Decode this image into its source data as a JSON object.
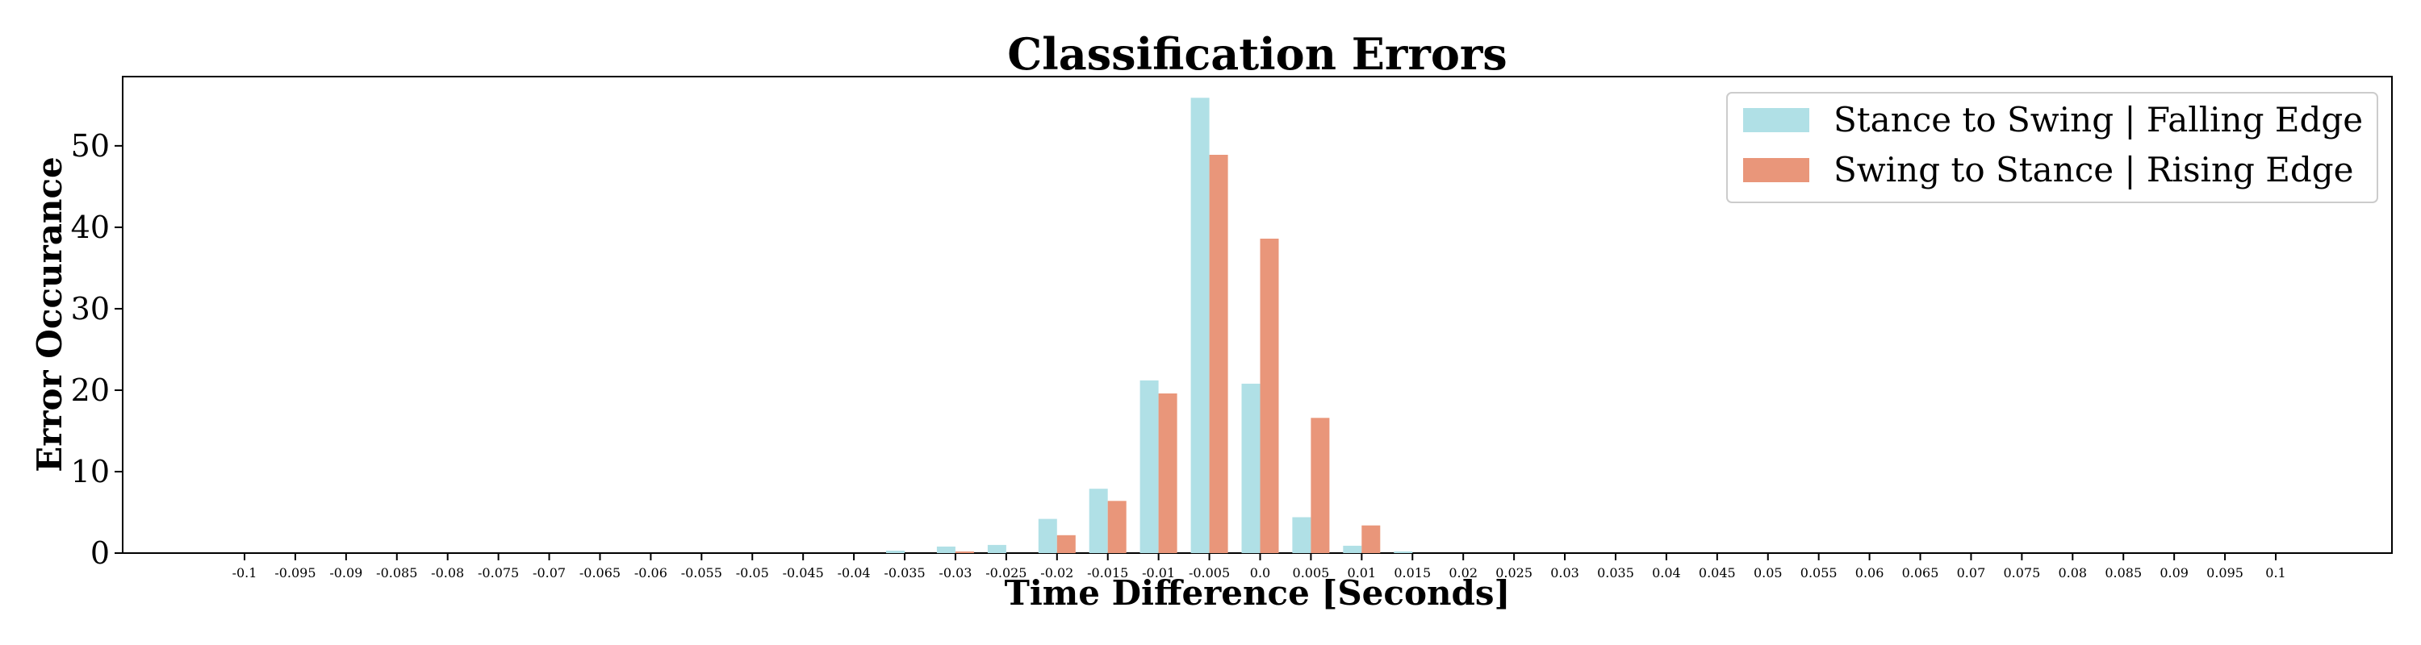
{
  "chart_data": {
    "type": "bar",
    "title": "Classification Errors",
    "xlabel": "Time Difference [Seconds]",
    "ylabel": "Error Occurance",
    "ylim": [
      0,
      58.5
    ],
    "yticks": [
      0,
      10,
      20,
      30,
      40,
      50
    ],
    "grid": false,
    "legend_position": "top-right",
    "categories": [
      "-0.1",
      "-0.095",
      "-0.09",
      "-0.085",
      "-0.08",
      "-0.075",
      "-0.07",
      "-0.065",
      "-0.06",
      "-0.055",
      "-0.05",
      "-0.045",
      "-0.04",
      "-0.035",
      "-0.03",
      "-0.025",
      "-0.02",
      "-0.015",
      "-0.01",
      "-0.005",
      "0.0",
      "0.005",
      "0.01",
      "0.015",
      "0.02",
      "0.025",
      "0.03",
      "0.035",
      "0.04",
      "0.045",
      "0.05",
      "0.055",
      "0.06",
      "0.065",
      "0.07",
      "0.075",
      "0.08",
      "0.085",
      "0.09",
      "0.095",
      "0.1"
    ],
    "series": [
      {
        "name": "Stance to Swing | Falling Edge",
        "color": "#b0e0e6",
        "values": [
          0,
          0,
          0,
          0,
          0,
          0,
          0,
          0,
          0,
          0,
          0,
          0,
          0,
          0.3,
          0.8,
          1.0,
          4.2,
          7.9,
          21.2,
          55.9,
          20.8,
          4.4,
          0.9,
          0.2,
          0,
          0,
          0,
          0,
          0,
          0,
          0,
          0,
          0,
          0,
          0,
          0,
          0,
          0,
          0,
          0,
          0
        ]
      },
      {
        "name": "Swing to Stance | Rising Edge",
        "color": "#e9967a",
        "values": [
          0,
          0,
          0,
          0,
          0,
          0,
          0,
          0,
          0,
          0,
          0,
          0,
          0,
          0,
          0.2,
          0,
          2.2,
          6.4,
          19.6,
          48.9,
          38.6,
          16.6,
          3.4,
          0,
          0,
          0,
          0,
          0,
          0,
          0,
          0,
          0,
          0,
          0,
          0,
          0,
          0,
          0,
          0,
          0,
          0
        ]
      }
    ]
  }
}
